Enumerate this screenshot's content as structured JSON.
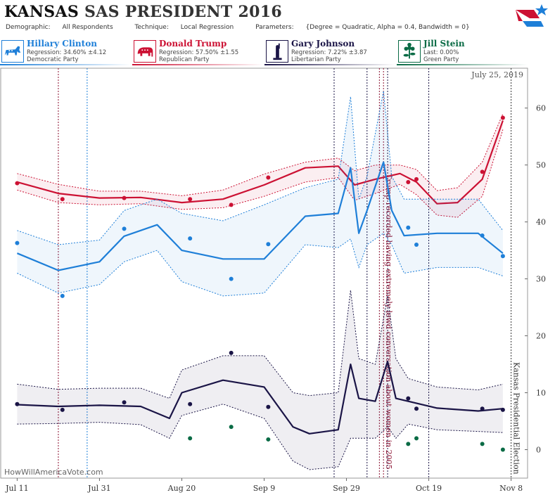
{
  "header": {
    "state": "KANSAS",
    "title_rest": "SAS PRESIDENT 2016",
    "demographic_label": "Demographic:",
    "demographic_value": "All Respondents",
    "technique_label": "Technique:",
    "technique_value": "Local Regression",
    "parameters_label": "Parameters:",
    "parameters_value": "{Degree = Quadratic, Alpha = 0.4, Bandwidth = 0}"
  },
  "candidates": [
    {
      "name": "Hillary Clinton",
      "line1": "Regression: 34.60% ±4.12",
      "line2": "Democratic Party",
      "color": "#1e7fd8",
      "icon": "donkey-icon"
    },
    {
      "name": "Donald Trump",
      "line1": "Regression: 57.50% ±1.55",
      "line2": "Republican Party",
      "color": "#cc1133",
      "icon": "elephant-icon"
    },
    {
      "name": "Gary Johnson",
      "line1": "Regression: 7.22% ±3.87",
      "line2": "Libertarian Party",
      "color": "#1a1446",
      "icon": "statue-of-liberty-icon"
    },
    {
      "name": "Jill Stein",
      "line1": "Last: 0.00%",
      "line2": "Green Party",
      "color": "#0a6b45",
      "icon": "flower-icon"
    }
  ],
  "colors": {
    "clinton": "#1e7fd8",
    "trump": "#cc1133",
    "johnson": "#1a1446",
    "stein": "#0a6b45"
  },
  "chart_data": {
    "type": "line",
    "date_label": "July 25, 2019",
    "watermark": "HowWillAmericaVote.com",
    "x_ticks": [
      "Jul 11",
      "Jul 31",
      "Aug 20",
      "Sep 9",
      "Sep 29",
      "Oct 19",
      "Nov 8"
    ],
    "y_ticks": [
      0,
      10,
      20,
      30,
      40,
      50,
      60
    ],
    "ylim": [
      -5,
      67
    ],
    "xlim": [
      "2016-07-07",
      "2016-11-12"
    ],
    "grid": false,
    "annotations": [
      {
        "date": "2016-10-08",
        "text": "Trump recorded having extremely lewd conversation about women in 2005",
        "color": "#8b1030"
      },
      {
        "date": "2016-11-08",
        "text": "Kansas Presidential Election",
        "color": "#333"
      }
    ],
    "event_lines": [
      {
        "date": "2016-07-21",
        "color": "#8b1030"
      },
      {
        "date": "2016-07-28",
        "color": "#1e7fd8"
      },
      {
        "date": "2016-09-26",
        "color": "#1a1446"
      },
      {
        "date": "2016-10-04",
        "color": "#1a1446"
      },
      {
        "date": "2016-10-07",
        "color": "#8b1030"
      },
      {
        "date": "2016-10-09",
        "color": "#1a1446"
      },
      {
        "date": "2016-10-19",
        "color": "#1a1446"
      }
    ],
    "series": [
      {
        "name": "Donald Trump",
        "color": "#cc1133",
        "points": [
          [
            "2016-07-11",
            46.8
          ],
          [
            "2016-07-22",
            44
          ],
          [
            "2016-08-06",
            44.2
          ],
          [
            "2016-08-22",
            44
          ],
          [
            "2016-09-01",
            43
          ],
          [
            "2016-09-10",
            47.8
          ],
          [
            "2016-10-14",
            47
          ],
          [
            "2016-10-16",
            47.5
          ],
          [
            "2016-11-01",
            48.8
          ],
          [
            "2016-11-06",
            58.3
          ]
        ],
        "trend": [
          [
            "2016-07-11",
            47
          ],
          [
            "2016-07-21",
            45
          ],
          [
            "2016-07-31",
            44.2
          ],
          [
            "2016-08-10",
            44.3
          ],
          [
            "2016-08-20",
            43.4
          ],
          [
            "2016-08-30",
            44
          ],
          [
            "2016-09-09",
            46.5
          ],
          [
            "2016-09-19",
            49.5
          ],
          [
            "2016-09-27",
            49.8
          ],
          [
            "2016-10-01",
            46.5
          ],
          [
            "2016-10-06",
            47.5
          ],
          [
            "2016-10-12",
            48.5
          ],
          [
            "2016-10-16",
            47
          ],
          [
            "2016-10-21",
            43.2
          ],
          [
            "2016-10-26",
            43.4
          ],
          [
            "2016-11-01",
            47.5
          ],
          [
            "2016-11-06",
            57.8
          ]
        ],
        "upper": [
          [
            "2016-07-11",
            48.5
          ],
          [
            "2016-07-21",
            46.6
          ],
          [
            "2016-07-31",
            45.4
          ],
          [
            "2016-08-10",
            45.4
          ],
          [
            "2016-08-20",
            44.6
          ],
          [
            "2016-08-30",
            45.6
          ],
          [
            "2016-09-09",
            48.4
          ],
          [
            "2016-09-19",
            50.5
          ],
          [
            "2016-09-27",
            51.2
          ],
          [
            "2016-10-01",
            49
          ],
          [
            "2016-10-06",
            50
          ],
          [
            "2016-10-12",
            50
          ],
          [
            "2016-10-16",
            49.2
          ],
          [
            "2016-10-21",
            45.5
          ],
          [
            "2016-10-26",
            46
          ],
          [
            "2016-11-01",
            50.5
          ],
          [
            "2016-11-06",
            59
          ]
        ],
        "lower": [
          [
            "2016-07-11",
            45.6
          ],
          [
            "2016-07-21",
            43.4
          ],
          [
            "2016-07-31",
            43
          ],
          [
            "2016-08-10",
            43.2
          ],
          [
            "2016-08-20",
            42.2
          ],
          [
            "2016-08-30",
            42.5
          ],
          [
            "2016-09-09",
            44.5
          ],
          [
            "2016-09-19",
            47
          ],
          [
            "2016-09-27",
            47.8
          ],
          [
            "2016-10-01",
            43.8
          ],
          [
            "2016-10-06",
            45
          ],
          [
            "2016-10-12",
            46.6
          ],
          [
            "2016-10-16",
            44.8
          ],
          [
            "2016-10-21",
            41.2
          ],
          [
            "2016-10-26",
            40.8
          ],
          [
            "2016-11-01",
            44.5
          ],
          [
            "2016-11-06",
            56.2
          ]
        ]
      },
      {
        "name": "Hillary Clinton",
        "color": "#1e7fd8",
        "points": [
          [
            "2016-07-11",
            36.3
          ],
          [
            "2016-07-22",
            27
          ],
          [
            "2016-08-06",
            38.8
          ],
          [
            "2016-08-22",
            37.1
          ],
          [
            "2016-09-01",
            30
          ],
          [
            "2016-09-10",
            36.1
          ],
          [
            "2016-10-14",
            39
          ],
          [
            "2016-10-16",
            36
          ],
          [
            "2016-11-01",
            37.6
          ],
          [
            "2016-11-06",
            34
          ]
        ],
        "trend": [
          [
            "2016-07-11",
            34.5
          ],
          [
            "2016-07-21",
            31.5
          ],
          [
            "2016-07-31",
            33
          ],
          [
            "2016-08-06",
            37.5
          ],
          [
            "2016-08-14",
            39.5
          ],
          [
            "2016-08-20",
            35
          ],
          [
            "2016-08-30",
            33.5
          ],
          [
            "2016-09-09",
            33.5
          ],
          [
            "2016-09-19",
            41
          ],
          [
            "2016-09-27",
            41.5
          ],
          [
            "2016-09-30",
            49.5
          ],
          [
            "2016-10-02",
            38
          ],
          [
            "2016-10-04",
            42
          ],
          [
            "2016-10-08",
            50.5
          ],
          [
            "2016-10-10",
            42
          ],
          [
            "2016-10-13",
            37.6
          ],
          [
            "2016-10-21",
            38
          ],
          [
            "2016-10-31",
            38
          ],
          [
            "2016-11-06",
            34.5
          ]
        ],
        "upper": [
          [
            "2016-07-11",
            38.5
          ],
          [
            "2016-07-21",
            36
          ],
          [
            "2016-07-31",
            36.8
          ],
          [
            "2016-08-06",
            42
          ],
          [
            "2016-08-14",
            44
          ],
          [
            "2016-08-20",
            41.5
          ],
          [
            "2016-08-30",
            40.2
          ],
          [
            "2016-09-09",
            43
          ],
          [
            "2016-09-19",
            46
          ],
          [
            "2016-09-27",
            47.5
          ],
          [
            "2016-09-30",
            62
          ],
          [
            "2016-10-02",
            44
          ],
          [
            "2016-10-04",
            48
          ],
          [
            "2016-10-08",
            63
          ],
          [
            "2016-10-10",
            48
          ],
          [
            "2016-10-13",
            44
          ],
          [
            "2016-10-21",
            44
          ],
          [
            "2016-10-31",
            44
          ],
          [
            "2016-11-06",
            38.5
          ]
        ],
        "lower": [
          [
            "2016-07-11",
            31
          ],
          [
            "2016-07-21",
            27.5
          ],
          [
            "2016-07-31",
            29
          ],
          [
            "2016-08-06",
            33
          ],
          [
            "2016-08-14",
            35
          ],
          [
            "2016-08-20",
            29.5
          ],
          [
            "2016-08-30",
            27
          ],
          [
            "2016-09-09",
            27.5
          ],
          [
            "2016-09-19",
            36
          ],
          [
            "2016-09-27",
            35.5
          ],
          [
            "2016-09-30",
            37
          ],
          [
            "2016-10-02",
            32
          ],
          [
            "2016-10-04",
            36
          ],
          [
            "2016-10-08",
            38
          ],
          [
            "2016-10-10",
            36
          ],
          [
            "2016-10-13",
            31
          ],
          [
            "2016-10-21",
            32
          ],
          [
            "2016-10-31",
            32
          ],
          [
            "2016-11-06",
            30.5
          ]
        ]
      },
      {
        "name": "Gary Johnson",
        "color": "#1a1446",
        "points": [
          [
            "2016-07-11",
            8
          ],
          [
            "2016-07-22",
            7
          ],
          [
            "2016-08-06",
            8.3
          ],
          [
            "2016-08-22",
            8
          ],
          [
            "2016-09-01",
            17
          ],
          [
            "2016-09-10",
            7.5
          ],
          [
            "2016-10-14",
            9
          ],
          [
            "2016-10-16",
            7.2
          ],
          [
            "2016-11-01",
            7.2
          ],
          [
            "2016-11-06",
            7
          ]
        ],
        "trend": [
          [
            "2016-07-11",
            7.9
          ],
          [
            "2016-07-21",
            7.6
          ],
          [
            "2016-07-31",
            7.8
          ],
          [
            "2016-08-10",
            7.6
          ],
          [
            "2016-08-17",
            5.5
          ],
          [
            "2016-08-20",
            10
          ],
          [
            "2016-08-30",
            12.2
          ],
          [
            "2016-09-09",
            11
          ],
          [
            "2016-09-16",
            4
          ],
          [
            "2016-09-20",
            2.8
          ],
          [
            "2016-09-27",
            3.5
          ],
          [
            "2016-09-30",
            15
          ],
          [
            "2016-10-02",
            9
          ],
          [
            "2016-10-06",
            8.5
          ],
          [
            "2016-10-09",
            15.5
          ],
          [
            "2016-10-11",
            9
          ],
          [
            "2016-10-14",
            8.5
          ],
          [
            "2016-10-21",
            7.3
          ],
          [
            "2016-10-31",
            6.8
          ],
          [
            "2016-11-06",
            7.2
          ]
        ],
        "upper": [
          [
            "2016-07-11",
            11.5
          ],
          [
            "2016-07-21",
            10.6
          ],
          [
            "2016-07-31",
            10.8
          ],
          [
            "2016-08-10",
            10.8
          ],
          [
            "2016-08-17",
            9
          ],
          [
            "2016-08-20",
            14
          ],
          [
            "2016-08-30",
            16.5
          ],
          [
            "2016-09-09",
            16.5
          ],
          [
            "2016-09-16",
            10
          ],
          [
            "2016-09-20",
            9.5
          ],
          [
            "2016-09-27",
            10
          ],
          [
            "2016-09-30",
            28
          ],
          [
            "2016-10-02",
            16
          ],
          [
            "2016-10-06",
            15
          ],
          [
            "2016-10-09",
            27
          ],
          [
            "2016-10-11",
            16
          ],
          [
            "2016-10-14",
            12.5
          ],
          [
            "2016-10-21",
            11
          ],
          [
            "2016-10-31",
            10.5
          ],
          [
            "2016-11-06",
            11.5
          ]
        ],
        "lower": [
          [
            "2016-07-11",
            4.5
          ],
          [
            "2016-07-21",
            4.6
          ],
          [
            "2016-07-31",
            4.8
          ],
          [
            "2016-08-10",
            4.4
          ],
          [
            "2016-08-17",
            2
          ],
          [
            "2016-08-20",
            6
          ],
          [
            "2016-08-30",
            8
          ],
          [
            "2016-09-09",
            5.5
          ],
          [
            "2016-09-16",
            -2
          ],
          [
            "2016-09-20",
            -3.5
          ],
          [
            "2016-09-27",
            -3
          ],
          [
            "2016-09-30",
            2
          ],
          [
            "2016-10-02",
            2
          ],
          [
            "2016-10-06",
            2
          ],
          [
            "2016-10-09",
            4
          ],
          [
            "2016-10-11",
            2
          ],
          [
            "2016-10-14",
            4.5
          ],
          [
            "2016-10-21",
            3.5
          ],
          [
            "2016-10-31",
            3.2
          ],
          [
            "2016-11-06",
            3
          ]
        ]
      },
      {
        "name": "Jill Stein",
        "color": "#0a6b45",
        "points": [
          [
            "2016-08-22",
            2
          ],
          [
            "2016-09-01",
            4
          ],
          [
            "2016-09-10",
            1.8
          ],
          [
            "2016-10-14",
            1
          ],
          [
            "2016-10-16",
            2
          ],
          [
            "2016-11-01",
            1
          ],
          [
            "2016-11-06",
            0
          ]
        ]
      }
    ]
  }
}
